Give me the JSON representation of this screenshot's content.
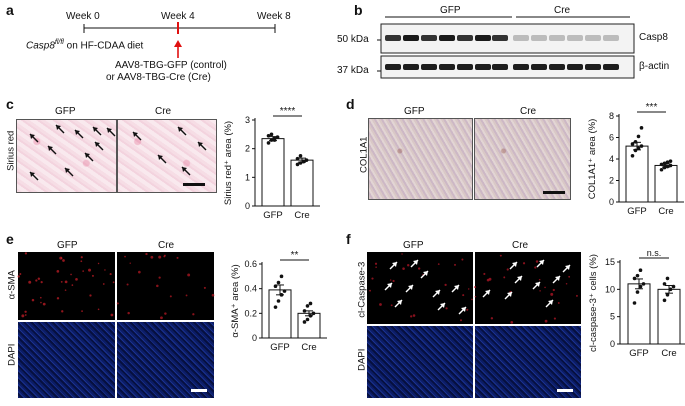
{
  "panels": {
    "a": {
      "letter": "a",
      "weeks": [
        "Week 0",
        "Week 4",
        "Week 8"
      ],
      "diet_gene": "Casp8",
      "diet_sup": "fl/fl",
      "diet_rest": " on HF-CDAA diet",
      "injection_line1": "AAV8-TBG-GFP (control)",
      "injection_line2": "or AAV8-TBG-Cre (Cre)"
    },
    "b": {
      "letter": "b",
      "groups": [
        "GFP",
        "Cre"
      ],
      "markers": [
        "50 kDa",
        "37 kDa"
      ],
      "proteins": [
        "Casp8",
        "β-actin"
      ]
    },
    "c": {
      "letter": "c",
      "row_label": "Sirius red",
      "groups": [
        "GFP",
        "Cre"
      ],
      "ylabel": "Sirius red⁺ area (%)",
      "signif": "****"
    },
    "d": {
      "letter": "d",
      "row_label": "COL1A1",
      "groups": [
        "GFP",
        "Cre"
      ],
      "ylabel": "COL1A1⁺ area (%)",
      "signif": "***"
    },
    "e": {
      "letter": "e",
      "row_labels": [
        "α-SMA",
        "DAPI"
      ],
      "groups": [
        "GFP",
        "Cre"
      ],
      "ylabel": "α-SMA⁺ area (%)",
      "signif": "**"
    },
    "f": {
      "letter": "f",
      "row_labels": [
        "cl-Caspase-3",
        "DAPI"
      ],
      "groups": [
        "GFP",
        "Cre"
      ],
      "ylabel": "cl-caspase-3⁺ cells (%)",
      "signif": "n.s."
    }
  },
  "chart_data": [
    {
      "type": "bar",
      "panel": "c",
      "categories": [
        "GFP",
        "Cre"
      ],
      "values": [
        2.35,
        1.6
      ],
      "errors": [
        0.07,
        0.07
      ],
      "points": [
        [
          2.2,
          2.3,
          2.35,
          2.4,
          2.45,
          2.5,
          2.3,
          2.4
        ],
        [
          1.45,
          1.5,
          1.55,
          1.6,
          1.65,
          1.75,
          1.55,
          1.6
        ]
      ],
      "ylabel": "Sirius red⁺ area (%)",
      "ylim": [
        0,
        3
      ],
      "yticks": [
        0,
        1,
        2,
        3
      ],
      "annotation": "****",
      "colors": [
        "#ffffff",
        "#ffffff"
      ]
    },
    {
      "type": "bar",
      "panel": "d",
      "categories": [
        "GFP",
        "Cre"
      ],
      "values": [
        5.2,
        3.4
      ],
      "errors": [
        0.35,
        0.15
      ],
      "points": [
        [
          4.3,
          4.8,
          5.0,
          5.2,
          5.4,
          5.6,
          6.1,
          6.9
        ],
        [
          3.0,
          3.2,
          3.3,
          3.4,
          3.5,
          3.6,
          3.7,
          3.8
        ]
      ],
      "ylabel": "COL1A1⁺ area (%)",
      "ylim": [
        0,
        8
      ],
      "yticks": [
        0,
        2,
        4,
        6,
        8
      ],
      "annotation": "***",
      "colors": [
        "#ffffff",
        "#ffffff"
      ]
    },
    {
      "type": "bar",
      "panel": "e",
      "categories": [
        "GFP",
        "Cre"
      ],
      "values": [
        0.39,
        0.2
      ],
      "errors": [
        0.04,
        0.02
      ],
      "points": [
        [
          0.25,
          0.3,
          0.35,
          0.38,
          0.42,
          0.45,
          0.5
        ],
        [
          0.13,
          0.15,
          0.18,
          0.2,
          0.22,
          0.26,
          0.28
        ]
      ],
      "ylabel": "α-SMA⁺ area (%)",
      "ylim": [
        0,
        0.6
      ],
      "yticks": [
        0,
        0.2,
        0.4,
        0.6
      ],
      "annotation": "**",
      "colors": [
        "#ffffff",
        "#ffffff"
      ]
    },
    {
      "type": "bar",
      "panel": "f",
      "categories": [
        "GFP",
        "Cre"
      ],
      "values": [
        11,
        10
      ],
      "errors": [
        0.9,
        0.7
      ],
      "points": [
        [
          7.5,
          9.5,
          10.5,
          11,
          12,
          12.5,
          13.5
        ],
        [
          8,
          9,
          10,
          10.5,
          11,
          12
        ]
      ],
      "ylabel": "cl-caspase-3⁺ cells (%)",
      "ylim": [
        0,
        15
      ],
      "yticks": [
        0,
        5,
        10,
        15
      ],
      "annotation": "n.s.",
      "colors": [
        "#ffffff",
        "#ffffff"
      ]
    }
  ]
}
